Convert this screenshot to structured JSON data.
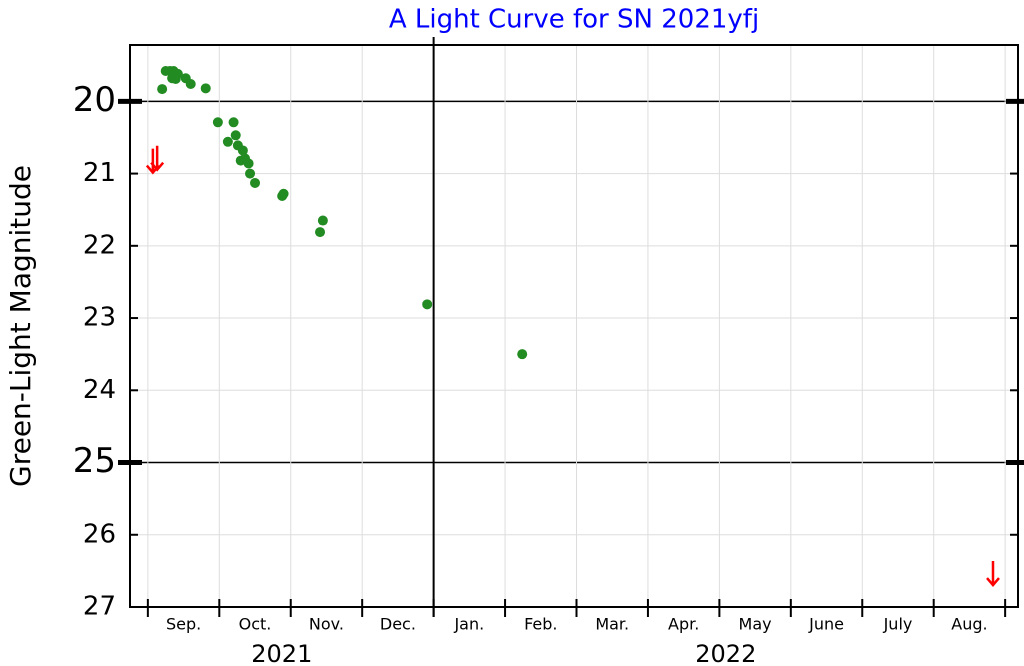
{
  "chart_data": {
    "type": "scatter",
    "title": "A Light Curve for SN 2021yfj",
    "y_label": "Green-Light Magnitude",
    "xlim": [
      -0.25,
      12.18
    ],
    "ylim": [
      19.22,
      27
    ],
    "y_inverted": true,
    "yticks": [
      20,
      21,
      22,
      23,
      24,
      25,
      26,
      27
    ],
    "y_major_ticks": [
      20,
      25
    ],
    "x_boundaries": [
      0,
      1,
      2,
      3,
      4,
      5,
      6,
      7,
      8,
      9,
      10,
      11,
      12
    ],
    "xticks": [
      {
        "value": 0.5,
        "label": "Sep."
      },
      {
        "value": 1.5,
        "label": "Oct."
      },
      {
        "value": 2.5,
        "label": "Nov."
      },
      {
        "value": 3.5,
        "label": "Dec."
      },
      {
        "value": 4.5,
        "label": "Jan."
      },
      {
        "value": 5.5,
        "label": "Feb."
      },
      {
        "value": 6.5,
        "label": "Mar."
      },
      {
        "value": 7.5,
        "label": "Apr."
      },
      {
        "value": 8.5,
        "label": "May"
      },
      {
        "value": 9.5,
        "label": "June"
      },
      {
        "value": 10.5,
        "label": "July"
      },
      {
        "value": 11.5,
        "label": "Aug."
      }
    ],
    "year_boundary": 4,
    "year_labels": [
      "2021",
      "2022"
    ],
    "grid": true,
    "detections": {
      "color": "#228b22",
      "x": [
        0.2,
        0.25,
        0.31,
        0.34,
        0.36,
        0.39,
        0.42,
        0.53,
        0.6,
        0.81,
        0.98,
        1.12,
        1.2,
        1.23,
        1.26,
        1.3,
        1.33,
        1.36,
        1.41,
        1.43,
        1.5,
        1.88,
        1.9,
        2.41,
        2.45,
        3.91,
        5.24
      ],
      "y": [
        19.83,
        19.58,
        19.58,
        19.68,
        19.58,
        19.69,
        19.62,
        19.68,
        19.76,
        19.82,
        20.29,
        20.56,
        20.29,
        20.47,
        20.61,
        20.82,
        20.68,
        20.79,
        20.86,
        21.0,
        21.13,
        21.31,
        21.28,
        21.81,
        21.65,
        22.81,
        23.5
      ]
    },
    "upper_limits": {
      "color": "#ff0000",
      "x": [
        0.07,
        0.13,
        11.83
      ],
      "y": [
        20.82,
        20.78,
        26.53
      ]
    }
  }
}
